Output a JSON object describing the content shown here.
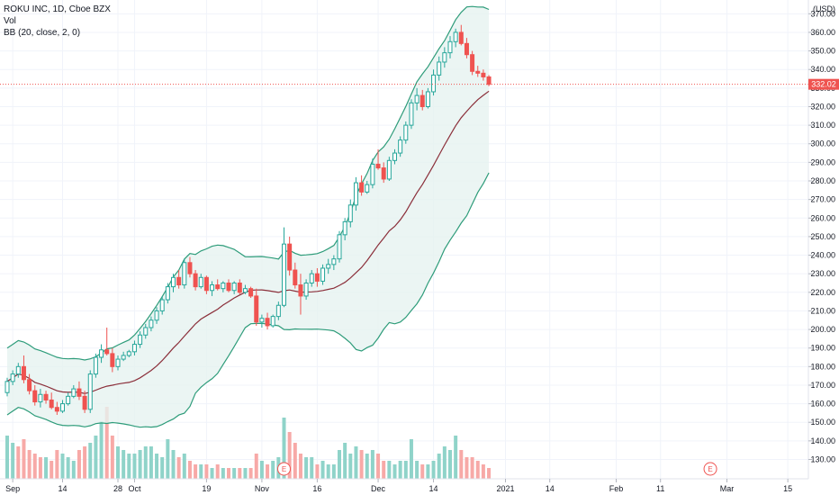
{
  "legend": {
    "symbol": "ROKU INC, 1D, Cboe BZX",
    "volume": "Vol",
    "bollinger": "BB (20, close, 2, 0)"
  },
  "price_axis": {
    "currency": "USD",
    "ticks": [
      "130.00",
      "140.00",
      "150.00",
      "160.00",
      "170.00",
      "180.00",
      "190.00",
      "200.00",
      "210.00",
      "220.00",
      "230.00",
      "240.00",
      "250.00",
      "260.00",
      "270.00",
      "280.00",
      "290.00",
      "300.00",
      "310.00",
      "320.00",
      "330.00",
      "340.00",
      "350.00",
      "360.00",
      "370.00"
    ],
    "last_price_label": "332.02"
  },
  "time_axis": {
    "labels": [
      {
        "text": "Sep",
        "index": 1
      },
      {
        "text": "14",
        "index": 10
      },
      {
        "text": "28",
        "index": 20
      },
      {
        "text": "Oct",
        "index": 23
      },
      {
        "text": "19",
        "index": 36
      },
      {
        "text": "Nov",
        "index": 46
      },
      {
        "text": "16",
        "index": 56
      },
      {
        "text": "Dec",
        "index": 67
      },
      {
        "text": "14",
        "index": 77
      },
      {
        "text": "2021",
        "index": 90
      },
      {
        "text": "14",
        "index": 98
      },
      {
        "text": "Feb",
        "index": 110
      },
      {
        "text": "11",
        "index": 118
      },
      {
        "text": "Mar",
        "index": 130
      },
      {
        "text": "15",
        "index": 141
      }
    ]
  },
  "earnings_markers": [
    {
      "label": "E",
      "index": 50
    },
    {
      "label": "E",
      "index": 127
    }
  ],
  "colors": {
    "up": "#26a69a",
    "down": "#ef5350",
    "up_volume": "#8fd3c9",
    "down_volume": "#f7a9a7",
    "band": "#2e9c7a",
    "basis": "#8b2f3a",
    "band_fill": "#e6f3f0",
    "last_price": "#ef5350"
  },
  "chart_data": {
    "type": "candlestick",
    "ylim": [
      122,
      375
    ],
    "y_ticks": [
      130,
      140,
      150,
      160,
      170,
      180,
      190,
      200,
      210,
      220,
      230,
      240,
      250,
      260,
      270,
      280,
      290,
      300,
      310,
      320,
      330,
      340,
      350,
      360,
      370
    ],
    "last_price": 332.02,
    "ohlc": [
      [
        166,
        174,
        164,
        172
      ],
      [
        172,
        178,
        170,
        176
      ],
      [
        176,
        182,
        174,
        180
      ],
      [
        180,
        186,
        171,
        173
      ],
      [
        173,
        176,
        165,
        167
      ],
      [
        167,
        170,
        159,
        161
      ],
      [
        161,
        168,
        158,
        165
      ],
      [
        165,
        167,
        160,
        162
      ],
      [
        162,
        166,
        157,
        158
      ],
      [
        158,
        161,
        154,
        156
      ],
      [
        156,
        162,
        155,
        160
      ],
      [
        160,
        166,
        159,
        164
      ],
      [
        164,
        170,
        163,
        168
      ],
      [
        168,
        172,
        162,
        164
      ],
      [
        164,
        167,
        155,
        157
      ],
      [
        157,
        178,
        155,
        176
      ],
      [
        176,
        187,
        174,
        185
      ],
      [
        185,
        192,
        182,
        189
      ],
      [
        189,
        201,
        186,
        187
      ],
      [
        187,
        190,
        177,
        180
      ],
      [
        180,
        186,
        178,
        184
      ],
      [
        184,
        188,
        183,
        186
      ],
      [
        186,
        189,
        185,
        188
      ],
      [
        188,
        194,
        186,
        192
      ],
      [
        192,
        199,
        190,
        197
      ],
      [
        197,
        203,
        195,
        201
      ],
      [
        201,
        207,
        199,
        205
      ],
      [
        205,
        212,
        203,
        210
      ],
      [
        210,
        218,
        208,
        216
      ],
      [
        216,
        225,
        214,
        223
      ],
      [
        223,
        230,
        220,
        228
      ],
      [
        228,
        232,
        222,
        224
      ],
      [
        224,
        238,
        222,
        236
      ],
      [
        236,
        239,
        228,
        230
      ],
      [
        230,
        232,
        221,
        223
      ],
      [
        223,
        230,
        222,
        228
      ],
      [
        228,
        229,
        219,
        221
      ],
      [
        221,
        226,
        218,
        224
      ],
      [
        224,
        227,
        221,
        222
      ],
      [
        222,
        226,
        220,
        225
      ],
      [
        225,
        227,
        220,
        221
      ],
      [
        221,
        226,
        219,
        225
      ],
      [
        225,
        227,
        219,
        220
      ],
      [
        220,
        224,
        219,
        222
      ],
      [
        222,
        223,
        217,
        218
      ],
      [
        218,
        222,
        202,
        204
      ],
      [
        204,
        208,
        201,
        206
      ],
      [
        206,
        209,
        200,
        202
      ],
      [
        202,
        208,
        201,
        207
      ],
      [
        207,
        215,
        205,
        213
      ],
      [
        213,
        255,
        212,
        246
      ],
      [
        246,
        250,
        229,
        232
      ],
      [
        232,
        236,
        222,
        224
      ],
      [
        224,
        230,
        208,
        218
      ],
      [
        218,
        227,
        216,
        225
      ],
      [
        225,
        232,
        223,
        230
      ],
      [
        230,
        233,
        223,
        226
      ],
      [
        226,
        235,
        224,
        233
      ],
      [
        233,
        238,
        230,
        235
      ],
      [
        235,
        240,
        232,
        238
      ],
      [
        238,
        253,
        236,
        251
      ],
      [
        251,
        260,
        248,
        258
      ],
      [
        258,
        270,
        255,
        267
      ],
      [
        267,
        282,
        264,
        279
      ],
      [
        279,
        283,
        272,
        274
      ],
      [
        274,
        280,
        273,
        278
      ],
      [
        278,
        292,
        276,
        289
      ],
      [
        289,
        297,
        286,
        287
      ],
      [
        287,
        290,
        279,
        281
      ],
      [
        281,
        293,
        280,
        291
      ],
      [
        291,
        297,
        289,
        295
      ],
      [
        295,
        304,
        293,
        302
      ],
      [
        302,
        312,
        300,
        310
      ],
      [
        310,
        324,
        308,
        322
      ],
      [
        322,
        330,
        318,
        326
      ],
      [
        326,
        329,
        318,
        320
      ],
      [
        320,
        330,
        319,
        328
      ],
      [
        328,
        340,
        326,
        337
      ],
      [
        337,
        347,
        334,
        344
      ],
      [
        344,
        352,
        341,
        349
      ],
      [
        349,
        358,
        346,
        355
      ],
      [
        355,
        362,
        352,
        360
      ],
      [
        360,
        364,
        353,
        354
      ],
      [
        354,
        357,
        346,
        348
      ],
      [
        348,
        350,
        337,
        339
      ],
      [
        339,
        342,
        336,
        338
      ],
      [
        338,
        340,
        334,
        336
      ],
      [
        336,
        337,
        331,
        332
      ]
    ],
    "volume": [
      [
        12,
        1
      ],
      [
        10,
        1
      ],
      [
        9,
        0
      ],
      [
        11,
        0
      ],
      [
        8,
        0
      ],
      [
        7,
        0
      ],
      [
        6,
        0
      ],
      [
        6,
        1
      ],
      [
        5,
        0
      ],
      [
        8,
        0
      ],
      [
        7,
        1
      ],
      [
        6,
        1
      ],
      [
        5,
        1
      ],
      [
        8,
        0
      ],
      [
        9,
        0
      ],
      [
        10,
        1
      ],
      [
        12,
        1
      ],
      [
        16,
        1
      ],
      [
        20,
        0
      ],
      [
        12,
        0
      ],
      [
        9,
        1
      ],
      [
        8,
        1
      ],
      [
        7,
        1
      ],
      [
        7,
        1
      ],
      [
        8,
        1
      ],
      [
        9,
        1
      ],
      [
        9,
        1
      ],
      [
        7,
        1
      ],
      [
        6,
        1
      ],
      [
        11,
        1
      ],
      [
        8,
        1
      ],
      [
        6,
        0
      ],
      [
        7,
        1
      ],
      [
        5,
        0
      ],
      [
        4,
        0
      ],
      [
        4,
        1
      ],
      [
        4,
        0
      ],
      [
        3,
        1
      ],
      [
        4,
        0
      ],
      [
        3,
        1
      ],
      [
        3,
        0
      ],
      [
        3,
        1
      ],
      [
        3,
        0
      ],
      [
        3,
        1
      ],
      [
        3,
        0
      ],
      [
        7,
        0
      ],
      [
        5,
        1
      ],
      [
        4,
        0
      ],
      [
        5,
        1
      ],
      [
        6,
        1
      ],
      [
        17,
        1
      ],
      [
        13,
        0
      ],
      [
        10,
        0
      ],
      [
        7,
        0
      ],
      [
        6,
        1
      ],
      [
        6,
        1
      ],
      [
        4,
        0
      ],
      [
        5,
        1
      ],
      [
        4,
        1
      ],
      [
        4,
        1
      ],
      [
        8,
        1
      ],
      [
        10,
        1
      ],
      [
        7,
        1
      ],
      [
        9,
        1
      ],
      [
        8,
        0
      ],
      [
        7,
        1
      ],
      [
        8,
        1
      ],
      [
        7,
        0
      ],
      [
        5,
        0
      ],
      [
        5,
        1
      ],
      [
        4,
        1
      ],
      [
        5,
        1
      ],
      [
        5,
        1
      ],
      [
        11,
        1
      ],
      [
        5,
        1
      ],
      [
        4,
        0
      ],
      [
        4,
        1
      ],
      [
        5,
        1
      ],
      [
        7,
        1
      ],
      [
        9,
        1
      ],
      [
        8,
        1
      ],
      [
        12,
        1
      ],
      [
        8,
        0
      ],
      [
        6,
        0
      ],
      [
        6,
        0
      ],
      [
        5,
        0
      ],
      [
        4,
        0
      ],
      [
        3,
        0
      ]
    ]
  }
}
